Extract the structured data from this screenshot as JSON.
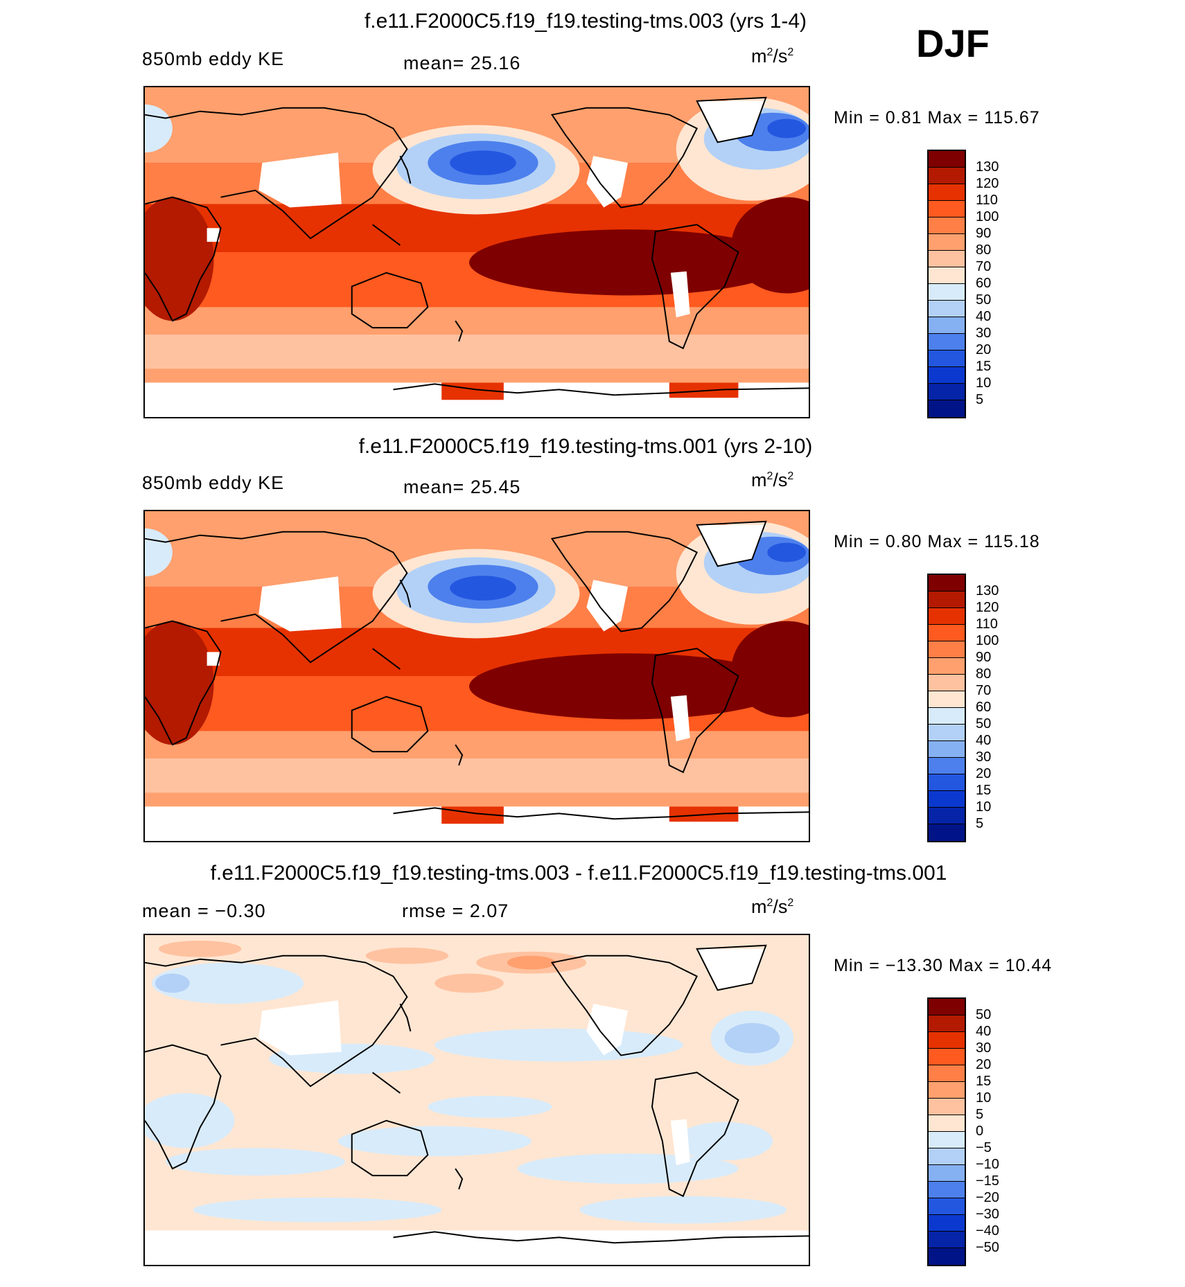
{
  "season": "DJF",
  "panels": [
    {
      "title": "f.e11.F2000C5.f19_f19.testing-tms.003 (yrs 1-4)",
      "left_label": "850mb eddy KE",
      "center_label": "mean=  25.16",
      "unit_base": "m",
      "unit_sup1": "2",
      "unit_mid": "/s",
      "unit_sup2": "2",
      "minmax": "Min =   0.81 Max = 115.67",
      "colorbar": {
        "levels": [
          "130",
          "120",
          "110",
          "100",
          "90",
          "80",
          "70",
          "60",
          "50",
          "40",
          "30",
          "20",
          "15",
          "10",
          "5"
        ],
        "colors": [
          "#7f0000",
          "#b31a00",
          "#e63200",
          "#ff5a1f",
          "#ff7f47",
          "#ffa06e",
          "#ffc2a0",
          "#ffe6d2",
          "#d8ebfa",
          "#b3d1f7",
          "#85b0f2",
          "#4d80ec",
          "#2457e0",
          "#0b39cf",
          "#0524a8",
          "#001487"
        ]
      },
      "map_style": "field"
    },
    {
      "title": "f.e11.F2000C5.f19_f19.testing-tms.001 (yrs 2-10)",
      "left_label": "850mb eddy KE",
      "center_label": "mean=  25.45",
      "unit_base": "m",
      "unit_sup1": "2",
      "unit_mid": "/s",
      "unit_sup2": "2",
      "minmax": "Min =   0.80 Max = 115.18",
      "colorbar": {
        "levels": [
          "130",
          "120",
          "110",
          "100",
          "90",
          "80",
          "70",
          "60",
          "50",
          "40",
          "30",
          "20",
          "15",
          "10",
          "5"
        ],
        "colors": [
          "#7f0000",
          "#b31a00",
          "#e63200",
          "#ff5a1f",
          "#ff7f47",
          "#ffa06e",
          "#ffc2a0",
          "#ffe6d2",
          "#d8ebfa",
          "#b3d1f7",
          "#85b0f2",
          "#4d80ec",
          "#2457e0",
          "#0b39cf",
          "#0524a8",
          "#001487"
        ]
      },
      "map_style": "field"
    },
    {
      "title": "f.e11.F2000C5.f19_f19.testing-tms.003 - f.e11.F2000C5.f19_f19.testing-tms.001",
      "left_label": "mean =  −0.30",
      "center_label": "rmse =   2.07",
      "unit_base": "m",
      "unit_sup1": "2",
      "unit_mid": "/s",
      "unit_sup2": "2",
      "minmax": "Min = −13.30 Max =  10.44",
      "colorbar": {
        "levels": [
          "50",
          "40",
          "30",
          "20",
          "15",
          "10",
          "5",
          "0",
          "−5",
          "−10",
          "−15",
          "−20",
          "−30",
          "−40",
          "−50"
        ],
        "colors": [
          "#7f0000",
          "#b31a00",
          "#e63200",
          "#ff5a1f",
          "#ff7f47",
          "#ffa06e",
          "#ffc2a0",
          "#ffe6d2",
          "#d8ebfa",
          "#b3d1f7",
          "#85b0f2",
          "#4d80ec",
          "#2457e0",
          "#0b39cf",
          "#0524a8",
          "#001487"
        ]
      },
      "map_style": "difference"
    }
  ],
  "chart_data": [
    {
      "type": "heatmap",
      "title": "f.e11.F2000C5.f19_f19.testing-tms.003 (yrs 1-4)",
      "variable": "850mb eddy KE",
      "units": "m2/s2",
      "mean": 25.16,
      "min": 0.81,
      "max": 115.67,
      "contour_levels": [
        5,
        10,
        15,
        20,
        30,
        40,
        50,
        60,
        70,
        80,
        90,
        100,
        110,
        120,
        130
      ]
    },
    {
      "type": "heatmap",
      "title": "f.e11.F2000C5.f19_f19.testing-tms.001 (yrs 2-10)",
      "variable": "850mb eddy KE",
      "units": "m2/s2",
      "mean": 25.45,
      "min": 0.8,
      "max": 115.18,
      "contour_levels": [
        5,
        10,
        15,
        20,
        30,
        40,
        50,
        60,
        70,
        80,
        90,
        100,
        110,
        120,
        130
      ]
    },
    {
      "type": "heatmap",
      "title": "f.e11.F2000C5.f19_f19.testing-tms.003 - f.e11.F2000C5.f19_f19.testing-tms.001",
      "units": "m2/s2",
      "mean": -0.3,
      "rmse": 2.07,
      "min": -13.3,
      "max": 10.44,
      "contour_levels": [
        -50,
        -40,
        -30,
        -20,
        -15,
        -10,
        -5,
        0,
        5,
        10,
        15,
        20,
        30,
        40,
        50
      ]
    }
  ]
}
